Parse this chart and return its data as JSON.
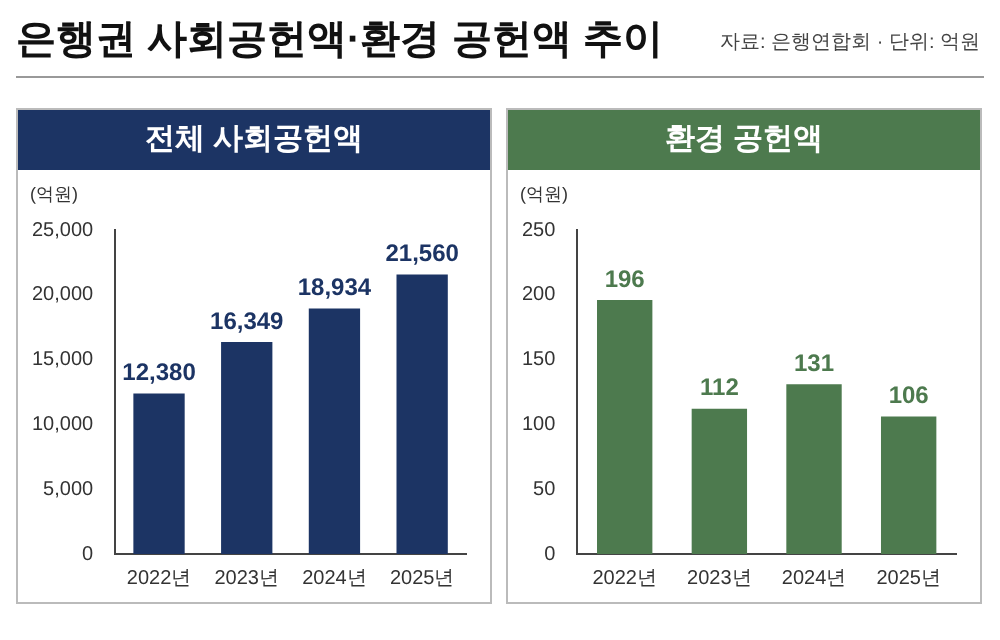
{
  "chart_data": [
    {
      "type": "bar",
      "title": "전체 사회공헌액",
      "ylabel": "(억원)",
      "categories": [
        "2022년",
        "2023년",
        "2024년",
        "2025년"
      ],
      "values": [
        12380,
        16349,
        18934,
        21560
      ],
      "value_labels": [
        "12,380",
        "16,349",
        "18,934",
        "21,560"
      ],
      "color": "#1c3464",
      "ylim": [
        0,
        25000
      ],
      "yticks": [
        0,
        {
          "value": 5000,
          "label": "5,000"
        },
        {
          "value": 10000,
          "label": "10,000"
        },
        {
          "value": 15000,
          "label": "15,000"
        },
        {
          "value": 20000,
          "label": "20,000"
        },
        {
          "value": 25000,
          "label": "25,000"
        }
      ],
      "grid": false,
      "legend": false,
      "annotations": [
        "은행권 사회공헌액·환경 공헌액 추이",
        "자료: 은행연합회 · 단위: 억원"
      ]
    },
    {
      "type": "bar",
      "title": "환경 공헌액",
      "ylabel": "(억원)",
      "categories": [
        "2022년",
        "2023년",
        "2024년",
        "2025년"
      ],
      "values": [
        196,
        112,
        131,
        106
      ],
      "color": "#4d7a4e",
      "ylim": [
        0,
        250
      ],
      "yticks": [
        0,
        50,
        100,
        150,
        200,
        250
      ],
      "data_labels": true,
      "grid": false,
      "legend": false
    }
  ]
}
